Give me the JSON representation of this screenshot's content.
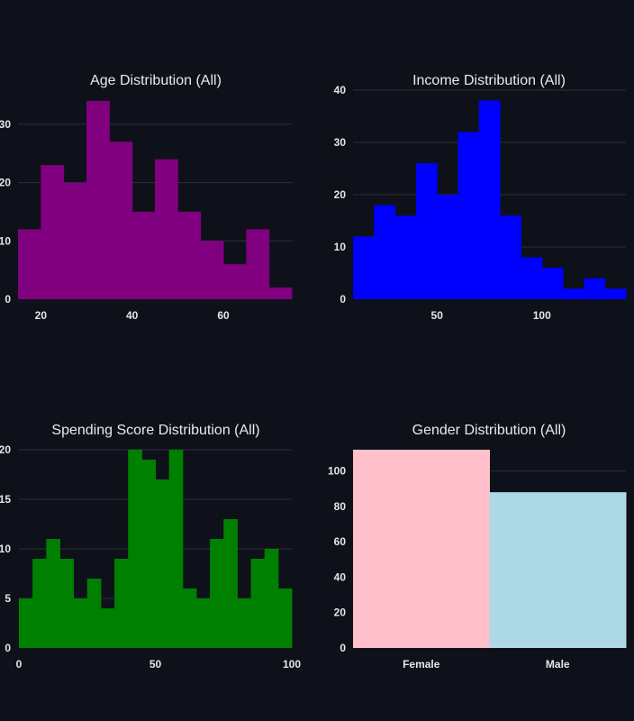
{
  "theme": {
    "background": "#0e111a",
    "grid": "#2c303b",
    "text": "#eaeaea"
  },
  "chart_data": [
    {
      "type": "bar",
      "title": "Age Distribution (All)",
      "color": "#800080",
      "bin_edges": [
        15,
        20,
        25,
        30,
        35,
        40,
        45,
        50,
        55,
        60,
        65,
        70,
        75
      ],
      "values": [
        12,
        23,
        20,
        34,
        27,
        15,
        24,
        15,
        10,
        6,
        12,
        2
      ],
      "xlim": [
        15,
        75
      ],
      "ylim": [
        0,
        34
      ],
      "x_ticks": [
        20,
        40,
        60
      ],
      "y_ticks": [
        0,
        10,
        20,
        30
      ],
      "y_tick_labels": [
        "0",
        "10",
        "20",
        "30"
      ],
      "xlabel": "",
      "ylabel": "",
      "grid": true
    },
    {
      "type": "bar",
      "title": "Income Distribution (All)",
      "color": "#0000ff",
      "bin_edges": [
        10,
        20,
        30,
        40,
        50,
        60,
        70,
        80,
        90,
        100,
        110,
        120,
        130,
        140
      ],
      "values": [
        12,
        18,
        16,
        26,
        20,
        32,
        38,
        16,
        8,
        6,
        2,
        4,
        2
      ],
      "xlim": [
        10,
        140
      ],
      "ylim": [
        0,
        40
      ],
      "x_ticks": [
        50,
        100
      ],
      "y_ticks": [
        0,
        10,
        20,
        30,
        40
      ],
      "y_tick_labels": [
        "0",
        "10",
        "20",
        "30",
        "40"
      ],
      "xlabel": "",
      "ylabel": "",
      "grid": true
    },
    {
      "type": "bar",
      "title": "Spending Score Distribution (All)",
      "color": "#008000",
      "bin_edges": [
        0,
        5,
        10,
        15,
        20,
        25,
        30,
        35,
        40,
        45,
        50,
        55,
        60,
        65,
        70,
        75,
        80,
        85,
        90,
        95,
        100
      ],
      "values": [
        5,
        9,
        11,
        9,
        5,
        7,
        4,
        9,
        20,
        19,
        17,
        20,
        6,
        5,
        11,
        13,
        5,
        9,
        10,
        6
      ],
      "xlim": [
        0,
        100
      ],
      "ylim": [
        0,
        20
      ],
      "x_ticks": [
        0,
        50,
        100
      ],
      "y_ticks": [
        0,
        5,
        10,
        15,
        20
      ],
      "y_tick_labels": [
        "0",
        "5",
        "10",
        "15",
        "20"
      ],
      "xlabel": "",
      "ylabel": "",
      "grid": true
    },
    {
      "type": "bar",
      "title": "Gender Distribution (All)",
      "categories": [
        "Female",
        "Male"
      ],
      "values": [
        112,
        88
      ],
      "colors": [
        "#ffc0cb",
        "#add8e6"
      ],
      "ylim": [
        0,
        112
      ],
      "y_ticks": [
        0,
        20,
        40,
        60,
        80,
        100
      ],
      "y_tick_labels": [
        "0",
        "20",
        "40",
        "60",
        "80",
        "100"
      ],
      "xlabel": "",
      "ylabel": "",
      "grid": true
    }
  ]
}
